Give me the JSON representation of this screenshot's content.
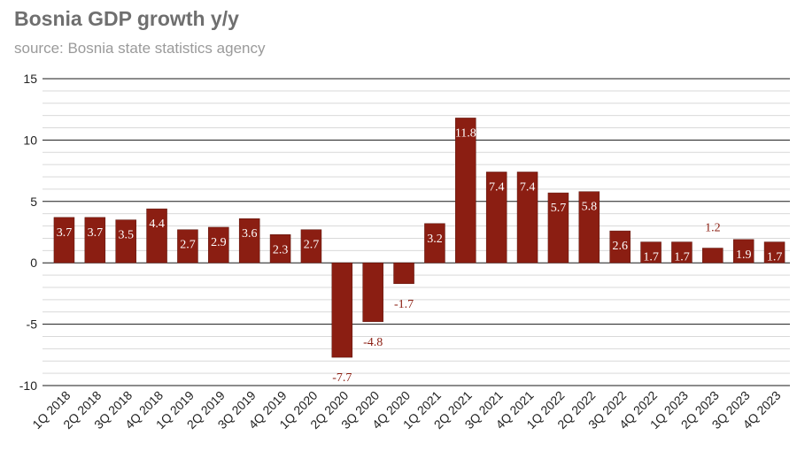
{
  "title": "Bosnia GDP growth y/y",
  "subtitle": "source: Bosnia state statistics agency",
  "colors": {
    "bar": "#8b1e12",
    "label_inside": "#ffffff",
    "label_outside": "#8b1e12"
  },
  "chart_data": {
    "type": "bar",
    "title": "Bosnia GDP growth y/y",
    "subtitle": "source: Bosnia state statistics agency",
    "xlabel": "",
    "ylabel": "",
    "ylim": [
      -10,
      15
    ],
    "yticks": [
      -10,
      -5,
      0,
      5,
      10,
      15
    ],
    "ytick_labels": [
      "-10",
      "-5",
      "0",
      "5",
      "10",
      "15"
    ],
    "grid": "horizontal major and minor",
    "legend": "none",
    "categories": [
      "1Q 2018",
      "2Q 2018",
      "3Q 2018",
      "4Q 2018",
      "1Q 2019",
      "2Q 2019",
      "3Q 2019",
      "4Q 2019",
      "1Q 2020",
      "2Q 2020",
      "3Q 2020",
      "4Q 2020",
      "1Q 2021",
      "2Q 2021",
      "3Q 2021",
      "4Q 2021",
      "1Q 2022",
      "2Q 2022",
      "3Q 2022",
      "4Q 2022",
      "1Q 2023",
      "2Q 2023",
      "3Q 2023",
      "4Q 2023"
    ],
    "values": [
      3.7,
      3.7,
      3.5,
      4.4,
      2.7,
      2.9,
      3.6,
      2.3,
      2.7,
      -7.7,
      -4.8,
      -1.7,
      3.2,
      11.8,
      7.4,
      7.4,
      5.7,
      5.8,
      2.6,
      1.7,
      1.7,
      1.2,
      1.9,
      1.7
    ],
    "data_labels": [
      "3.7",
      "3.7",
      "3.5",
      "4.4",
      "2.7",
      "2.9",
      "3.6",
      "2.3",
      "2.7",
      "-7.7",
      "-4.8",
      "-1.7",
      "3.2",
      "11.8",
      "7.4",
      "7.4",
      "5.7",
      "5.8",
      "2.6",
      "1.7",
      "1.7",
      "1.2",
      "1.9",
      "1.7"
    ]
  }
}
